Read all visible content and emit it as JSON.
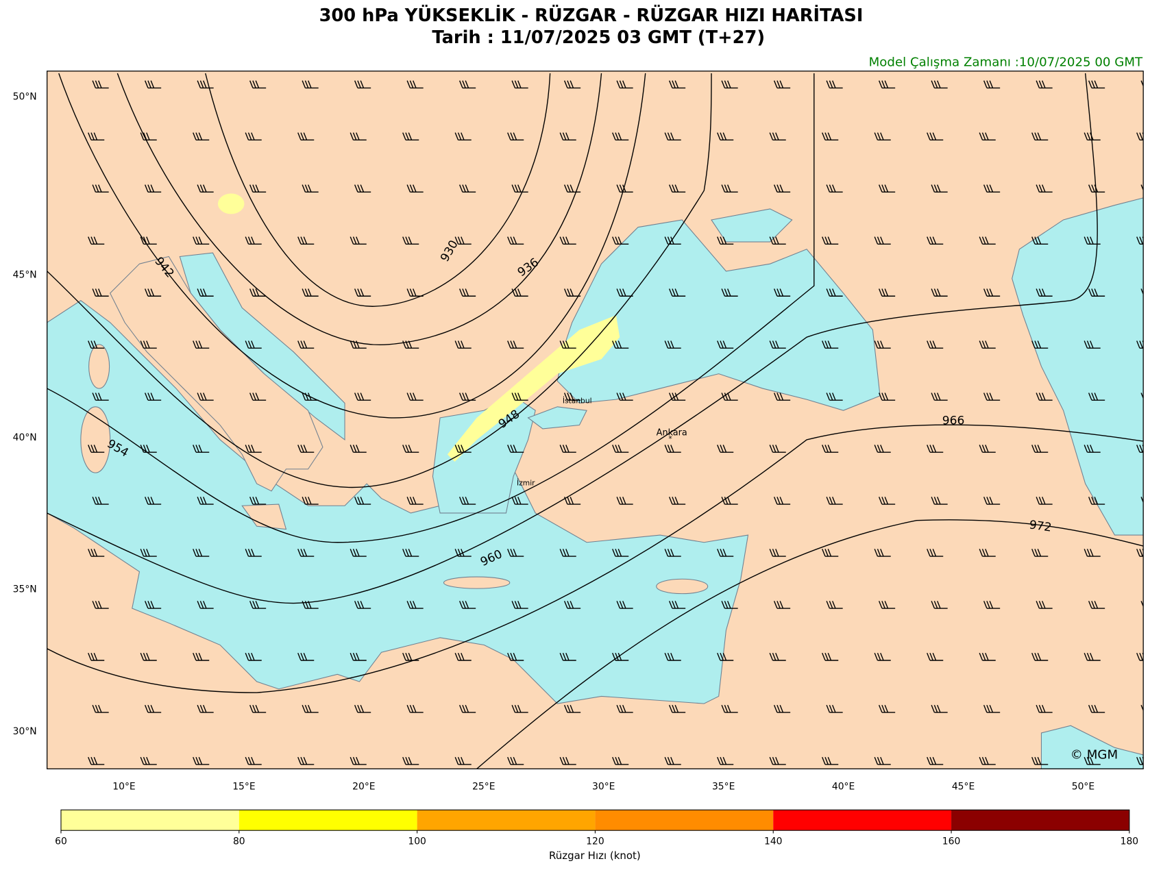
{
  "header": {
    "title": "300 hPa YÜKSEKLİK - RÜZGAR - RÜZGAR HIZI HARİTASI",
    "subtitle": "Tarih : 11/07/2025  03 GMT (T+27)",
    "run_time": "Model Çalışma Zamanı :10/07/2025  00 GMT"
  },
  "map": {
    "lat_labels": [
      "50°N",
      "45°N",
      "40°N",
      "35°N",
      "30°N"
    ],
    "lon_labels": [
      "10°E",
      "15°E",
      "20°E",
      "25°E",
      "30°E",
      "35°E",
      "40°E",
      "45°E",
      "50°E"
    ],
    "contour_labels": [
      "930",
      "936",
      "942",
      "948",
      "954",
      "960",
      "966",
      "972"
    ],
    "cities": [
      "İstanbul",
      "Ankara",
      "İzmir"
    ],
    "credit": "© MGM"
  },
  "colorbar": {
    "ticks": [
      60,
      80,
      100,
      120,
      140,
      160,
      180
    ],
    "colors": [
      "#ffff99",
      "#ffff00",
      "#ffa500",
      "#ff8c00",
      "#ff0000",
      "#8b0000"
    ],
    "label": "Rüzgar Hızı (knot)"
  }
}
